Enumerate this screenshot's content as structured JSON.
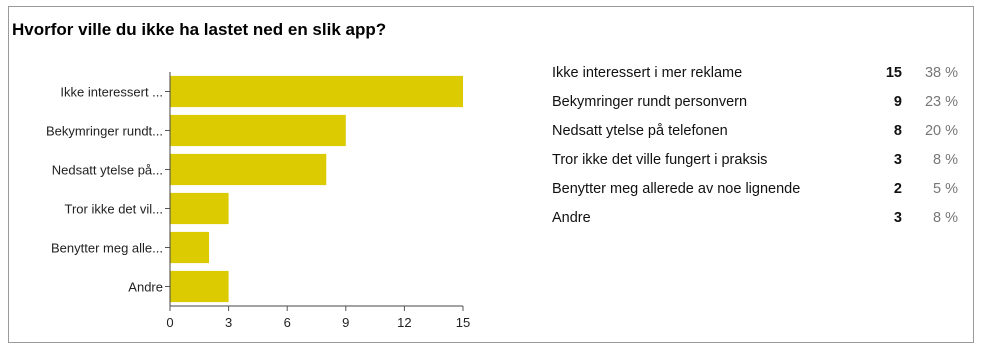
{
  "title": "Hvorfor ville du ikke ha lastet ned en slik app?",
  "chart_data": {
    "type": "bar",
    "orientation": "horizontal",
    "categories": [
      "Ikke interessert ...",
      "Bekymringer rundt...",
      "Nedsatt ytelse på...",
      "Tror ikke det vil...",
      "Benytter meg alle...",
      "Andre"
    ],
    "values": [
      15,
      9,
      8,
      3,
      2,
      3
    ],
    "xlim": [
      0,
      15
    ],
    "xticks": [
      0,
      3,
      6,
      9,
      12,
      15
    ],
    "bar_color": "#dccb00",
    "grid": false
  },
  "table": [
    {
      "label": "Ikke interessert i mer reklame",
      "count": "15",
      "pct": "38 %"
    },
    {
      "label": "Bekymringer rundt personvern",
      "count": "9",
      "pct": "23 %"
    },
    {
      "label": "Nedsatt ytelse på telefonen",
      "count": "8",
      "pct": "20 %"
    },
    {
      "label": "Tror ikke det ville fungert i praksis",
      "count": "3",
      "pct": "8 %"
    },
    {
      "label": "Benytter meg allerede av noe lignende",
      "count": "2",
      "pct": "5 %"
    },
    {
      "label": "Andre",
      "count": "3",
      "pct": "8 %"
    }
  ]
}
